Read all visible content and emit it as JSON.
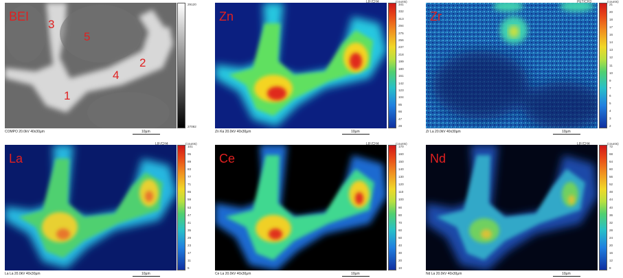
{
  "panels": [
    {
      "id": "bei",
      "label": "BEI",
      "caption": "COMPO 20.0kV 40x30µm",
      "scale": "10µm",
      "tag": "",
      "unit": "",
      "ticks": [
        "29120",
        "27082"
      ],
      "points": [
        "1",
        "2",
        "3",
        "4",
        "5"
      ]
    },
    {
      "id": "zn",
      "label": "Zn",
      "caption": "Zn Ka 20.0kV 40x30µm",
      "scale": "10µm",
      "tag": "LIF/CH4",
      "unit": "(counts)",
      "ticks": [
        "341",
        "332",
        "313",
        "294",
        "275",
        "256",
        "237",
        "218",
        "199",
        "180",
        "161",
        "142",
        "123",
        "104",
        "85",
        "66",
        "47",
        "28"
      ]
    },
    {
      "id": "zr",
      "label": "Zr",
      "caption": "Zr La 20.0kV 40x30µm",
      "scale": "10µm",
      "tag": "PET/CH3",
      "unit": "(counts)",
      "ticks": [
        "21",
        "20",
        "18",
        "17",
        "16",
        "14",
        "13",
        "12",
        "11",
        "10",
        "9",
        "7",
        "6",
        "5",
        "4",
        "3",
        "2"
      ]
    },
    {
      "id": "la",
      "label": "La",
      "caption": "La La 20.0kV 40x30µm",
      "scale": "10µm",
      "tag": "LIF/CH4",
      "unit": "(counts)",
      "ticks": [
        "101",
        "95",
        "89",
        "83",
        "77",
        "71",
        "65",
        "59",
        "53",
        "47",
        "41",
        "35",
        "29",
        "23",
        "17",
        "11",
        "5"
      ]
    },
    {
      "id": "ce",
      "label": "Ce",
      "caption": "Ce La 20.0kV 40x30µm",
      "scale": "10µm",
      "tag": "LIF/CH4",
      "unit": "(counts)",
      "ticks": [
        "170",
        "160",
        "150",
        "140",
        "130",
        "120",
        "110",
        "100",
        "90",
        "80",
        "70",
        "60",
        "50",
        "40",
        "30",
        "20",
        "10"
      ]
    },
    {
      "id": "nd",
      "label": "Nd",
      "caption": "Nd La 20.0kV 40x30µm",
      "scale": "10µm",
      "tag": "LIF/CH4",
      "unit": "(counts)",
      "ticks": [
        "72",
        "68",
        "64",
        "60",
        "56",
        "52",
        "48",
        "44",
        "40",
        "36",
        "32",
        "28",
        "24",
        "20",
        "16",
        "12",
        "8"
      ]
    }
  ],
  "colors": {
    "label_red": "#e02020",
    "map_low": "#0a1e78",
    "map_mid": "#2fd06a",
    "map_high": "#e8281c"
  }
}
